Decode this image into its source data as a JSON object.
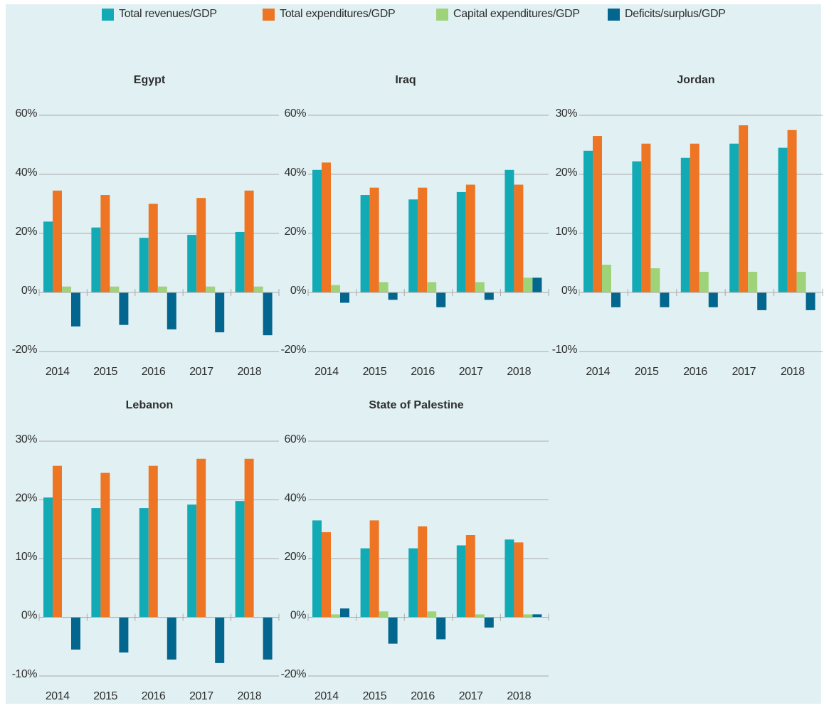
{
  "legend": [
    {
      "label": "Total revenues/GDP",
      "color": "#12abb5"
    },
    {
      "label": "Total expenditures/GDP",
      "color": "#ee7524"
    },
    {
      "label": "Capital expenditures/GDP",
      "color": "#9fd37a"
    },
    {
      "label": "Deficits/surplus/GDP",
      "color": "#03668f"
    }
  ],
  "chart_data": [
    {
      "type": "bar",
      "title": "Egypt",
      "categories": [
        "2014",
        "2015",
        "2016",
        "2017",
        "2018"
      ],
      "ylim": [
        -20,
        60
      ],
      "yticks": [
        -20,
        0,
        20,
        40,
        60
      ],
      "ytick_labels": [
        "-20%",
        "0%",
        "20%",
        "40%",
        "60%"
      ],
      "series": [
        {
          "name": "Total revenues/GDP",
          "values": [
            24,
            22,
            18.5,
            19.5,
            20.5
          ]
        },
        {
          "name": "Total expenditures/GDP",
          "values": [
            34.5,
            33,
            30,
            32,
            34.5
          ]
        },
        {
          "name": "Capital expenditures/GDP",
          "values": [
            2,
            2,
            2,
            2,
            2
          ]
        },
        {
          "name": "Deficits/surplus/GDP",
          "values": [
            -11.5,
            -11,
            -12.5,
            -13.5,
            -14.5
          ]
        }
      ]
    },
    {
      "type": "bar",
      "title": "Iraq",
      "categories": [
        "2014",
        "2015",
        "2016",
        "2017",
        "2018"
      ],
      "ylim": [
        -20,
        60
      ],
      "yticks": [
        -20,
        0,
        20,
        40,
        60
      ],
      "ytick_labels": [
        "-20%",
        "0%",
        "20%",
        "40%",
        "60%"
      ],
      "series": [
        {
          "name": "Total revenues/GDP",
          "values": [
            41.5,
            33,
            31.5,
            34,
            41.5
          ]
        },
        {
          "name": "Total expenditures/GDP",
          "values": [
            44,
            35.5,
            35.5,
            36.5,
            36.5
          ]
        },
        {
          "name": "Capital expenditures/GDP",
          "values": [
            2.5,
            3.5,
            3.5,
            3.5,
            5
          ]
        },
        {
          "name": "Deficits/surplus/GDP",
          "values": [
            -3.5,
            -2.5,
            -5,
            -2.5,
            5
          ]
        }
      ]
    },
    {
      "type": "bar",
      "title": "Jordan",
      "categories": [
        "2014",
        "2015",
        "2016",
        "2017",
        "2018"
      ],
      "ylim": [
        -10,
        30
      ],
      "yticks": [
        -10,
        0,
        10,
        20,
        30
      ],
      "ytick_labels": [
        "-10%",
        "0%",
        "10%",
        "20%",
        "30%"
      ],
      "series": [
        {
          "name": "Total revenues/GDP",
          "values": [
            24,
            22.2,
            22.8,
            25.2,
            24.5
          ]
        },
        {
          "name": "Total expenditures/GDP",
          "values": [
            26.5,
            25.2,
            25.2,
            28.3,
            27.5
          ]
        },
        {
          "name": "Capital expenditures/GDP",
          "values": [
            4.7,
            4.1,
            3.5,
            3.5,
            3.5
          ]
        },
        {
          "name": "Deficits/surplus/GDP",
          "values": [
            -2.5,
            -2.5,
            -2.5,
            -3,
            -3
          ]
        }
      ]
    },
    {
      "type": "bar",
      "title": "Lebanon",
      "categories": [
        "2014",
        "2015",
        "2016",
        "2017",
        "2018"
      ],
      "ylim": [
        -10,
        30
      ],
      "yticks": [
        -10,
        0,
        10,
        20,
        30
      ],
      "ytick_labels": [
        "-10%",
        "0%",
        "10%",
        "20%",
        "30%"
      ],
      "series": [
        {
          "name": "Total revenues/GDP",
          "values": [
            20.4,
            18.6,
            18.6,
            19.2,
            19.8
          ]
        },
        {
          "name": "Total expenditures/GDP",
          "values": [
            25.8,
            24.6,
            25.8,
            27,
            27
          ]
        },
        {
          "name": "Capital expenditures/GDP",
          "values": [
            0,
            0,
            0,
            0,
            0
          ]
        },
        {
          "name": "Deficits/surplus/GDP",
          "values": [
            -5.5,
            -6,
            -7.2,
            -7.8,
            -7.2
          ]
        }
      ]
    },
    {
      "type": "bar",
      "title": "State of Palestine",
      "categories": [
        "2014",
        "2015",
        "2016",
        "2017",
        "2018"
      ],
      "ylim": [
        -20,
        60
      ],
      "yticks": [
        -20,
        0,
        20,
        40,
        60
      ],
      "ytick_labels": [
        "-20%",
        "0%",
        "20%",
        "40%",
        "60%"
      ],
      "series": [
        {
          "name": "Total revenues/GDP",
          "values": [
            33,
            23.5,
            23.5,
            24.5,
            26.5
          ]
        },
        {
          "name": "Total expenditures/GDP",
          "values": [
            29,
            33,
            31,
            28,
            25.5
          ]
        },
        {
          "name": "Capital expenditures/GDP",
          "values": [
            1,
            2,
            2,
            1,
            1
          ]
        },
        {
          "name": "Deficits/surplus/GDP",
          "values": [
            3,
            -9,
            -7.5,
            -3.5,
            1
          ]
        }
      ]
    }
  ]
}
